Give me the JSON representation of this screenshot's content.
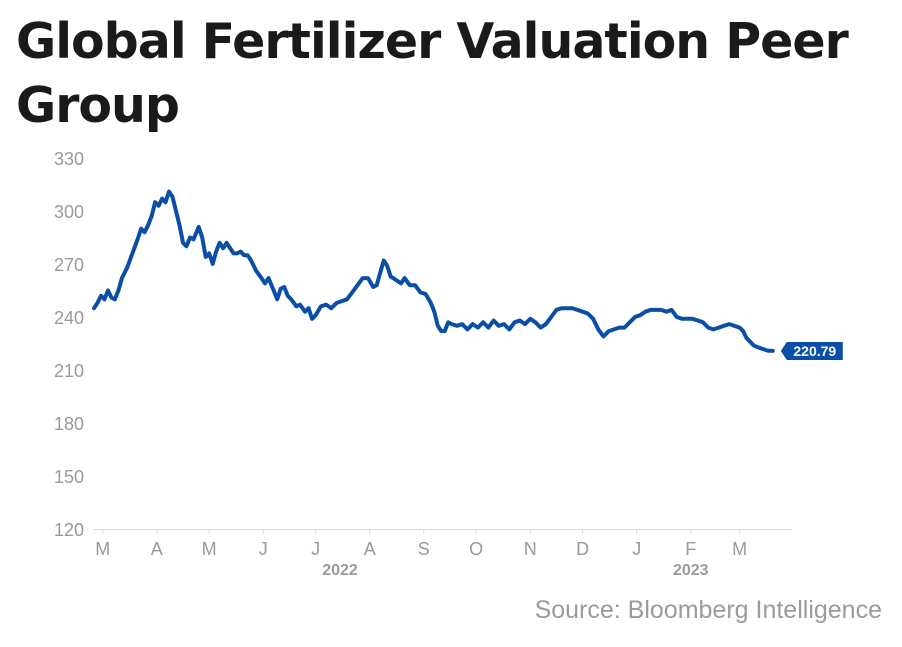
{
  "chart_data": {
    "type": "line",
    "title": "Global Fertilizer Valuation Peer Group",
    "source": "Source: Bloomberg Intelligence",
    "y_range": [
      120,
      330
    ],
    "y_ticks": [
      120,
      150,
      180,
      210,
      240,
      270,
      300,
      330
    ],
    "x_range": [
      "2022-02-24",
      "2023-03-31"
    ],
    "x_ticks": [
      {
        "label": "M",
        "date": "2022-03-01"
      },
      {
        "label": "A",
        "date": "2022-04-01"
      },
      {
        "label": "M",
        "date": "2022-05-01"
      },
      {
        "label": "J",
        "date": "2022-06-01"
      },
      {
        "label": "J",
        "date": "2022-07-01"
      },
      {
        "label": "A",
        "date": "2022-08-01"
      },
      {
        "label": "S",
        "date": "2022-09-01"
      },
      {
        "label": "O",
        "date": "2022-10-01"
      },
      {
        "label": "N",
        "date": "2022-11-01"
      },
      {
        "label": "D",
        "date": "2022-12-01"
      },
      {
        "label": "J",
        "date": "2023-01-01"
      },
      {
        "label": "F",
        "date": "2023-02-01"
      },
      {
        "label": "M",
        "date": "2023-03-01"
      }
    ],
    "year_labels": [
      {
        "label": "2022",
        "date": "2022-07-15"
      },
      {
        "label": "2023",
        "date": "2023-02-01"
      }
    ],
    "grid": false,
    "line_color": "#0a4ea6",
    "last_value_label": "220.79",
    "series": [
      {
        "name": "",
        "points": [
          [
            "2022-02-24",
            245
          ],
          [
            "2022-02-26",
            248
          ],
          [
            "2022-02-28",
            252
          ],
          [
            "2022-03-02",
            250
          ],
          [
            "2022-03-04",
            255
          ],
          [
            "2022-03-06",
            251
          ],
          [
            "2022-03-08",
            250
          ],
          [
            "2022-03-10",
            255
          ],
          [
            "2022-03-12",
            262
          ],
          [
            "2022-03-15",
            268
          ],
          [
            "2022-03-18",
            276
          ],
          [
            "2022-03-21",
            284
          ],
          [
            "2022-03-23",
            290
          ],
          [
            "2022-03-25",
            288
          ],
          [
            "2022-03-27",
            292
          ],
          [
            "2022-03-29",
            297
          ],
          [
            "2022-03-31",
            305
          ],
          [
            "2022-04-02",
            303
          ],
          [
            "2022-04-04",
            307
          ],
          [
            "2022-04-06",
            305
          ],
          [
            "2022-04-08",
            311
          ],
          [
            "2022-04-10",
            308
          ],
          [
            "2022-04-12",
            300
          ],
          [
            "2022-04-14",
            292
          ],
          [
            "2022-04-16",
            282
          ],
          [
            "2022-04-18",
            280
          ],
          [
            "2022-04-20",
            285
          ],
          [
            "2022-04-22",
            284
          ],
          [
            "2022-04-25",
            291
          ],
          [
            "2022-04-27",
            285
          ],
          [
            "2022-04-29",
            274
          ],
          [
            "2022-05-01",
            276
          ],
          [
            "2022-05-03",
            270
          ],
          [
            "2022-05-05",
            277
          ],
          [
            "2022-05-07",
            282
          ],
          [
            "2022-05-09",
            279
          ],
          [
            "2022-05-11",
            282
          ],
          [
            "2022-05-13",
            279
          ],
          [
            "2022-05-15",
            276
          ],
          [
            "2022-05-17",
            276
          ],
          [
            "2022-05-19",
            277
          ],
          [
            "2022-05-21",
            275
          ],
          [
            "2022-05-23",
            275
          ],
          [
            "2022-05-25",
            272
          ],
          [
            "2022-05-28",
            266
          ],
          [
            "2022-05-31",
            262
          ],
          [
            "2022-06-02",
            259
          ],
          [
            "2022-06-04",
            262
          ],
          [
            "2022-06-07",
            255
          ],
          [
            "2022-06-09",
            250
          ],
          [
            "2022-06-11",
            256
          ],
          [
            "2022-06-13",
            257
          ],
          [
            "2022-06-15",
            252
          ],
          [
            "2022-06-17",
            250
          ],
          [
            "2022-06-20",
            246
          ],
          [
            "2022-06-22",
            247
          ],
          [
            "2022-06-25",
            243
          ],
          [
            "2022-06-27",
            245
          ],
          [
            "2022-06-29",
            239
          ],
          [
            "2022-07-01",
            241
          ],
          [
            "2022-07-04",
            246
          ],
          [
            "2022-07-07",
            247
          ],
          [
            "2022-07-10",
            245
          ],
          [
            "2022-07-13",
            248
          ],
          [
            "2022-07-16",
            249
          ],
          [
            "2022-07-19",
            250
          ],
          [
            "2022-07-22",
            254
          ],
          [
            "2022-07-25",
            258
          ],
          [
            "2022-07-28",
            262
          ],
          [
            "2022-07-31",
            262
          ],
          [
            "2022-08-03",
            257
          ],
          [
            "2022-08-05",
            258
          ],
          [
            "2022-08-07",
            265
          ],
          [
            "2022-08-09",
            272
          ],
          [
            "2022-08-11",
            269
          ],
          [
            "2022-08-13",
            263
          ],
          [
            "2022-08-16",
            261
          ],
          [
            "2022-08-19",
            259
          ],
          [
            "2022-08-21",
            262
          ],
          [
            "2022-08-24",
            258
          ],
          [
            "2022-08-27",
            258
          ],
          [
            "2022-08-30",
            254
          ],
          [
            "2022-09-02",
            253
          ],
          [
            "2022-09-05",
            248
          ],
          [
            "2022-09-07",
            243
          ],
          [
            "2022-09-09",
            235
          ],
          [
            "2022-09-11",
            232
          ],
          [
            "2022-09-13",
            232
          ],
          [
            "2022-09-15",
            237
          ],
          [
            "2022-09-17",
            236
          ],
          [
            "2022-09-20",
            235
          ],
          [
            "2022-09-23",
            236
          ],
          [
            "2022-09-26",
            233
          ],
          [
            "2022-09-29",
            236
          ],
          [
            "2022-10-02",
            234
          ],
          [
            "2022-10-05",
            237
          ],
          [
            "2022-10-08",
            234
          ],
          [
            "2022-10-11",
            238
          ],
          [
            "2022-10-14",
            235
          ],
          [
            "2022-10-17",
            236
          ],
          [
            "2022-10-20",
            233
          ],
          [
            "2022-10-23",
            237
          ],
          [
            "2022-10-26",
            238
          ],
          [
            "2022-10-29",
            236
          ],
          [
            "2022-11-01",
            239
          ],
          [
            "2022-11-04",
            237
          ],
          [
            "2022-11-07",
            234
          ],
          [
            "2022-11-10",
            236
          ],
          [
            "2022-11-13",
            240
          ],
          [
            "2022-11-16",
            244
          ],
          [
            "2022-11-19",
            245
          ],
          [
            "2022-11-22",
            245
          ],
          [
            "2022-11-25",
            245
          ],
          [
            "2022-11-28",
            244
          ],
          [
            "2022-12-01",
            243
          ],
          [
            "2022-12-04",
            242
          ],
          [
            "2022-12-07",
            239
          ],
          [
            "2022-12-10",
            233
          ],
          [
            "2022-12-13",
            229
          ],
          [
            "2022-12-16",
            232
          ],
          [
            "2022-12-19",
            233
          ],
          [
            "2022-12-22",
            234
          ],
          [
            "2022-12-25",
            234
          ],
          [
            "2022-12-28",
            237
          ],
          [
            "2022-12-31",
            240
          ],
          [
            "2023-01-03",
            241
          ],
          [
            "2023-01-06",
            243
          ],
          [
            "2023-01-09",
            244
          ],
          [
            "2023-01-12",
            244
          ],
          [
            "2023-01-15",
            244
          ],
          [
            "2023-01-18",
            243
          ],
          [
            "2023-01-21",
            244
          ],
          [
            "2023-01-24",
            240
          ],
          [
            "2023-01-27",
            239
          ],
          [
            "2023-01-30",
            239
          ],
          [
            "2023-02-02",
            239
          ],
          [
            "2023-02-05",
            238
          ],
          [
            "2023-02-08",
            237
          ],
          [
            "2023-02-11",
            234
          ],
          [
            "2023-02-14",
            233
          ],
          [
            "2023-02-17",
            234
          ],
          [
            "2023-02-20",
            235
          ],
          [
            "2023-02-23",
            236
          ],
          [
            "2023-02-26",
            235
          ],
          [
            "2023-03-01",
            234
          ],
          [
            "2023-03-03",
            232
          ],
          [
            "2023-03-05",
            228
          ],
          [
            "2023-03-07",
            226
          ],
          [
            "2023-03-09",
            224
          ],
          [
            "2023-03-11",
            223
          ],
          [
            "2023-03-14",
            222
          ],
          [
            "2023-03-17",
            221
          ],
          [
            "2023-03-20",
            220.79
          ]
        ]
      }
    ]
  }
}
